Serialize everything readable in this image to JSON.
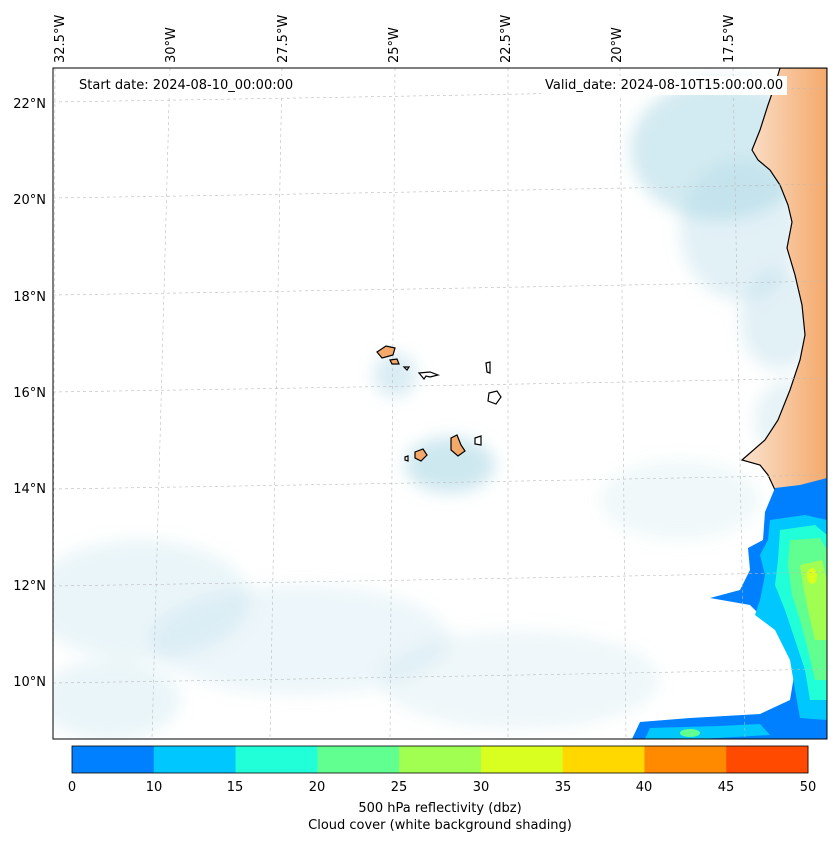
{
  "map": {
    "start_date": "Start date: 2024-08-10_00:00:00",
    "valid_date": "Valid_date: 2024-08-10T15:00:00.00",
    "lon_labels": [
      "32.5°W",
      "30°W",
      "27.5°W",
      "25°W",
      "22.5°W",
      "20°W",
      "17.5°W"
    ],
    "lat_labels": [
      "22°N",
      "20°N",
      "18°N",
      "16°N",
      "14°N",
      "12°N",
      "10°N"
    ],
    "land_color": "#f4a96b",
    "cloud_color": "#add8e6",
    "gridlines": true
  },
  "colorbar": {
    "ticks": [
      "0",
      "10",
      "15",
      "20",
      "25",
      "30",
      "35",
      "40",
      "45",
      "50"
    ],
    "colors": [
      "#0080ff",
      "#00c8ff",
      "#20ffd8",
      "#60ff90",
      "#a0ff50",
      "#d8ff20",
      "#ffd800",
      "#ff8a00",
      "#ff4a00"
    ],
    "label": "500 hPa reflectivity (dbz)",
    "sublabel": "Cloud cover (white background shading)"
  }
}
